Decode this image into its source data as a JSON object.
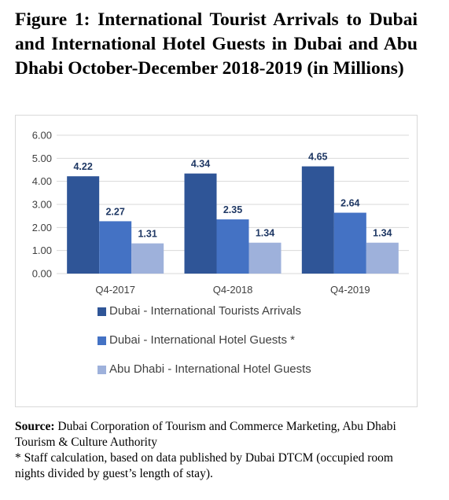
{
  "title": "Figure 1: International Tourist Arrivals to Dubai and International Hotel Guests in Dubai and Abu Dhabi October-December 2018-2019 (in Millions)",
  "colors": {
    "series1": "#2f5597",
    "series2": "#4472c4",
    "series3": "#9eb1db",
    "grid": "#d9d9d9",
    "label": "#1f3864",
    "axis_text": "#404040"
  },
  "chart_data": {
    "type": "bar",
    "categories": [
      "Q4-2017",
      "Q4-2018",
      "Q4-2019"
    ],
    "series": [
      {
        "name": "Dubai - International Tourists Arrivals",
        "values": [
          4.22,
          4.34,
          4.65
        ]
      },
      {
        "name": "Dubai - International Hotel Guests *",
        "values": [
          2.27,
          2.35,
          2.64
        ]
      },
      {
        "name": "Abu Dhabi - International Hotel Guests",
        "values": [
          1.31,
          1.34,
          1.34
        ]
      }
    ],
    "y_ticks": [
      "0.00",
      "1.00",
      "2.00",
      "3.00",
      "4.00",
      "5.00",
      "6.00"
    ],
    "ylim": [
      0,
      6
    ],
    "grid": true,
    "legend_position": "bottom"
  },
  "source": {
    "label": "Source:",
    "text": " Dubai Corporation of Tourism and Commerce Marketing, Abu Dhabi Tourism & Culture Authority",
    "note": "* Staff calculation, based on data published by Dubai DTCM (occupied room nights divided by guest’s length of stay)."
  }
}
